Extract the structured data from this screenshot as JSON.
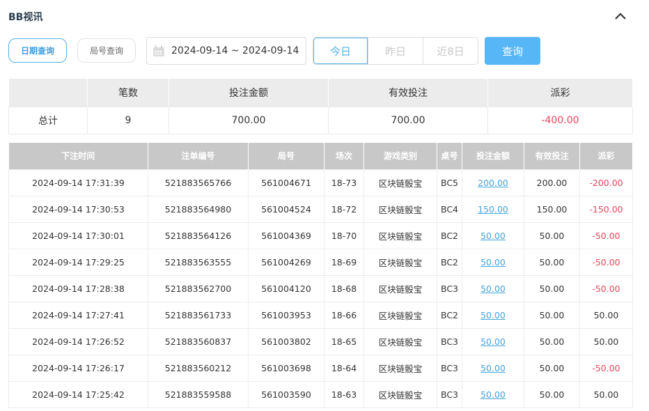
{
  "header": {
    "title": "BB视讯",
    "collapse_icon": "chevron-up-icon"
  },
  "filters": {
    "date_query_label": "日期查询",
    "round_query_label": "局号查询",
    "date_range": "2024-09-14 ~ 2024-09-14",
    "calendar_icon": "calendar-icon",
    "quick": [
      "今日",
      "昨日",
      "近8日"
    ],
    "quick_selected": "今日",
    "query_label": "查询"
  },
  "summary": {
    "headers": [
      "",
      "笔数",
      "投注金额",
      "有效投注",
      "派彩"
    ],
    "row": [
      "总计",
      "9",
      "700.00",
      "700.00",
      "-400.00"
    ]
  },
  "detail": {
    "headers": [
      "下注时间",
      "注单编号",
      "局号",
      "场次",
      "游戏类别",
      "桌号",
      "投注金额",
      "有效投注",
      "派彩"
    ],
    "rows": [
      [
        "2024-09-14 17:31:39",
        "521883565766",
        "561004671",
        "18-73",
        "区块链骰宝",
        "BC5",
        "200.00",
        "200.00",
        "-200.00"
      ],
      [
        "2024-09-14 17:30:53",
        "521883564980",
        "561004524",
        "18-72",
        "区块链骰宝",
        "BC4",
        "150.00",
        "150.00",
        "-150.00"
      ],
      [
        "2024-09-14 17:30:01",
        "521883564126",
        "561004369",
        "18-70",
        "区块链骰宝",
        "BC2",
        "50.00",
        "50.00",
        "-50.00"
      ],
      [
        "2024-09-14 17:29:25",
        "521883563555",
        "561004269",
        "18-69",
        "区块链骰宝",
        "BC2",
        "50.00",
        "50.00",
        "-50.00"
      ],
      [
        "2024-09-14 17:28:38",
        "521883562700",
        "561004120",
        "18-68",
        "区块链骰宝",
        "BC3",
        "50.00",
        "50.00",
        "-50.00"
      ],
      [
        "2024-09-14 17:27:41",
        "521883561733",
        "561003953",
        "18-66",
        "区块链骰宝",
        "BC2",
        "50.00",
        "50.00",
        "50.00"
      ],
      [
        "2024-09-14 17:26:52",
        "521883560837",
        "561003802",
        "18-65",
        "区块链骰宝",
        "BC3",
        "50.00",
        "50.00",
        "50.00"
      ],
      [
        "2024-09-14 17:26:17",
        "521883560212",
        "561003698",
        "18-64",
        "区块链骰宝",
        "BC3",
        "50.00",
        "50.00",
        "-50.00"
      ],
      [
        "2024-09-14 17:25:42",
        "521883559588",
        "561003590",
        "18-63",
        "区块链骰宝",
        "BC3",
        "50.00",
        "50.00",
        "50.00"
      ]
    ]
  },
  "colors": {
    "accent": "#4fb0ea",
    "query_button": "#56b6f6",
    "negative": "#e5475c",
    "link": "#3fa3e0"
  }
}
